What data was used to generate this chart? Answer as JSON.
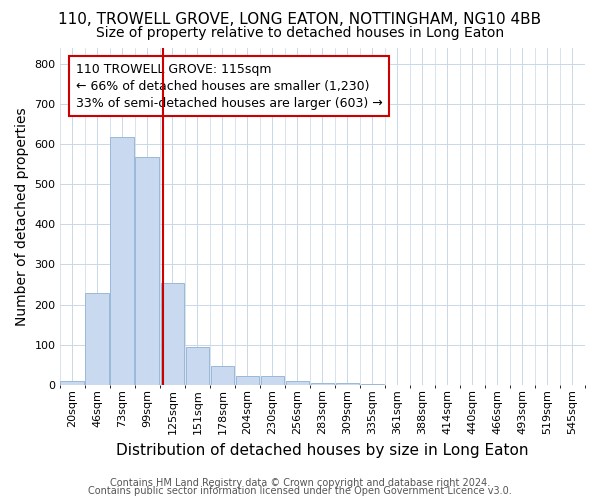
{
  "title": "110, TROWELL GROVE, LONG EATON, NOTTINGHAM, NG10 4BB",
  "subtitle": "Size of property relative to detached houses in Long Eaton",
  "xlabel": "Distribution of detached houses by size in Long Eaton",
  "ylabel": "Number of detached properties",
  "bar_labels": [
    "20sqm",
    "46sqm",
    "73sqm",
    "99sqm",
    "125sqm",
    "151sqm",
    "178sqm",
    "204sqm",
    "230sqm",
    "256sqm",
    "283sqm",
    "309sqm",
    "335sqm",
    "361sqm",
    "388sqm",
    "414sqm",
    "440sqm",
    "466sqm",
    "493sqm",
    "519sqm",
    "545sqm"
  ],
  "bar_values": [
    10,
    228,
    617,
    568,
    255,
    95,
    48,
    22,
    22,
    10,
    5,
    5,
    2,
    0,
    0,
    0,
    0,
    0,
    0,
    0,
    0
  ],
  "bar_color": "#c9daf0",
  "bar_edgecolor": "#9ab8d8",
  "red_line_label": "110 TROWELL GROVE: 115sqm",
  "annotation_line1": "← 66% of detached houses are smaller (1,230)",
  "annotation_line2": "33% of semi-detached houses are larger (603) →",
  "ylim": [
    0,
    840
  ],
  "yticks": [
    0,
    100,
    200,
    300,
    400,
    500,
    600,
    700,
    800
  ],
  "footer_line1": "Contains HM Land Registry data © Crown copyright and database right 2024.",
  "footer_line2": "Contains public sector information licensed under the Open Government Licence v3.0.",
  "bg_color": "#ffffff",
  "grid_color": "#c8d8e8",
  "title_fontsize": 11,
  "subtitle_fontsize": 10,
  "axis_label_fontsize": 10,
  "tick_fontsize": 8,
  "annotation_fontsize": 9,
  "footer_fontsize": 7
}
